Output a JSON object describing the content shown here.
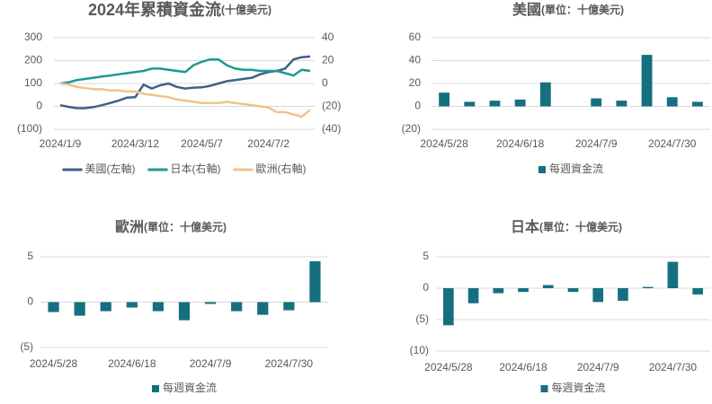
{
  "chart_data": [
    {
      "type": "line",
      "title": "2024年累積資金流",
      "unit": "(十億美元)",
      "categories": [
        "2024/1/9",
        null,
        null,
        null,
        null,
        null,
        null,
        null,
        null,
        "2024/3/12",
        null,
        null,
        null,
        null,
        null,
        null,
        null,
        "2024/5/7",
        null,
        null,
        null,
        null,
        null,
        null,
        null,
        "2024/7/2",
        null,
        null,
        null,
        null,
        null
      ],
      "series": [
        {
          "name": "美國(左軸)",
          "color": "#3e6189",
          "values": [
            5,
            -2,
            -8,
            -8,
            -3,
            5,
            15,
            25,
            38,
            40,
            95,
            78,
            92,
            100,
            85,
            78,
            82,
            83,
            90,
            100,
            110,
            115,
            120,
            125,
            140,
            150,
            155,
            165,
            205,
            215,
            218
          ]
        },
        {
          "name": "日本(右軸)",
          "color": "#1b9a96",
          "axis": "y2",
          "values": [
            0,
            1,
            3,
            4,
            5,
            6,
            7,
            8,
            9,
            10,
            11,
            13,
            13,
            12,
            11,
            10,
            16,
            19,
            21,
            21,
            16,
            13,
            12,
            12,
            11,
            11,
            11,
            9,
            7,
            12,
            11
          ]
        },
        {
          "name": "歐洲(右軸)",
          "color": "#efc38b",
          "axis": "y2",
          "values": [
            0,
            -1,
            -3,
            -4,
            -5,
            -5,
            -6,
            -6,
            -7,
            -7,
            -9,
            -10,
            -11,
            -12,
            -14,
            -15,
            -16,
            -17,
            -17,
            -17,
            -16,
            -17,
            -18,
            -19,
            -20,
            -21,
            -25,
            -25,
            -27,
            -29,
            -23
          ]
        }
      ],
      "ylim": [
        -100,
        300
      ],
      "yticks": [
        300,
        200,
        100,
        0,
        {
          "value": -100,
          "label": "(100)"
        }
      ],
      "y2lim": [
        -40,
        40
      ],
      "y2ticks": [
        40,
        20,
        0,
        {
          "value": -20,
          "label": "(20)"
        },
        {
          "value": -40,
          "label": "(40)"
        }
      ],
      "grid": true,
      "legend": "bottom"
    },
    {
      "type": "bar",
      "title": "美國",
      "unit": "(單位：十億美元)",
      "categories": [
        "2024/5/28",
        null,
        null,
        "2024/6/18",
        null,
        null,
        "2024/7/9",
        null,
        null,
        "2024/7/30",
        null
      ],
      "series": [
        {
          "name": "每週資金流",
          "color": "#166f80",
          "values": [
            12,
            4,
            5,
            6,
            21,
            0,
            7,
            5,
            45,
            8,
            4
          ]
        }
      ],
      "ylim": [
        -20,
        60
      ],
      "yticks": [
        60,
        40,
        20,
        0,
        {
          "value": -20,
          "label": "(20)"
        }
      ],
      "grid": true,
      "legend": "bottom"
    },
    {
      "type": "bar",
      "title": "歐洲",
      "unit": "(單位：十億美元)",
      "categories": [
        "2024/5/28",
        null,
        null,
        "2024/6/18",
        null,
        null,
        "2024/7/9",
        null,
        null,
        "2024/7/30",
        null
      ],
      "series": [
        {
          "name": "每週資金流",
          "color": "#166f80",
          "values": [
            -1.1,
            -1.5,
            -1.0,
            -0.6,
            -1.0,
            -2.0,
            -0.2,
            -1.0,
            -1.4,
            -0.9,
            4.5
          ]
        }
      ],
      "ylim": [
        -5,
        5
      ],
      "yticks": [
        5,
        0,
        {
          "value": -5,
          "label": "(5)"
        }
      ],
      "grid": true,
      "legend": "bottom"
    },
    {
      "type": "bar",
      "title": "日本",
      "unit": "(單位：十億美元)",
      "categories": [
        "2024/5/28",
        null,
        null,
        "2024/6/18",
        null,
        null,
        "2024/7/9",
        null,
        null,
        "2024/7/30",
        null
      ],
      "series": [
        {
          "name": "每週資金流",
          "color": "#166f80",
          "values": [
            -5.9,
            -2.4,
            -0.8,
            -0.6,
            0.5,
            -0.6,
            -2.2,
            -2.0,
            0.2,
            4.2,
            -1.0
          ]
        }
      ],
      "ylim": [
        -10,
        5
      ],
      "yticks": [
        5,
        0,
        {
          "value": -5,
          "label": "(5)"
        },
        {
          "value": -10,
          "label": "(10)"
        }
      ],
      "grid": true,
      "legend": "bottom"
    }
  ]
}
